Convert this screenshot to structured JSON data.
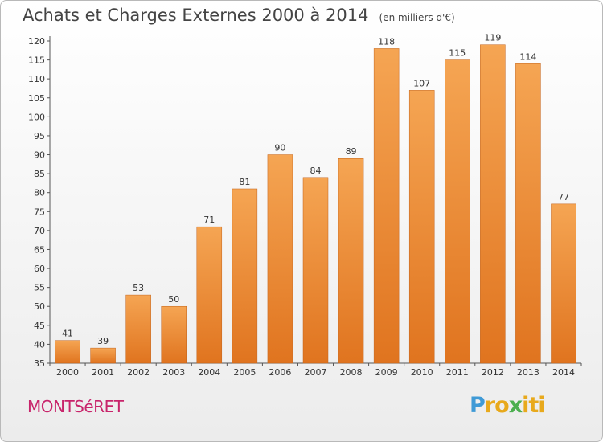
{
  "chart_data": {
    "type": "bar",
    "title": "Achats et Charges Externes 2000 à 2014",
    "subtitle": "(en milliers d'€)",
    "categories": [
      "2000",
      "2001",
      "2002",
      "2003",
      "2004",
      "2005",
      "2006",
      "2007",
      "2008",
      "2009",
      "2010",
      "2011",
      "2012",
      "2013",
      "2014"
    ],
    "values": [
      41,
      39,
      53,
      50,
      71,
      81,
      90,
      84,
      89,
      118,
      107,
      115,
      119,
      114,
      77
    ],
    "ylim": [
      35,
      120
    ],
    "yticks": [
      35,
      40,
      45,
      50,
      55,
      60,
      65,
      70,
      75,
      80,
      85,
      90,
      95,
      100,
      105,
      110,
      115,
      120
    ],
    "grid": false,
    "colors": {
      "bar_top": "#f5a553",
      "bar_bottom": "#e0741f",
      "bar_edge": "#c2621a"
    }
  },
  "footer": {
    "city": "MONTSéRET",
    "logo_letters": [
      "P",
      "r",
      "o",
      "x",
      "i",
      "t",
      "i"
    ],
    "logo_colors": [
      "#3f9ad6",
      "#e8a91c",
      "#e8a91c",
      "#4caf50",
      "#e8a91c",
      "#e8a91c",
      "#e8a91c"
    ]
  }
}
